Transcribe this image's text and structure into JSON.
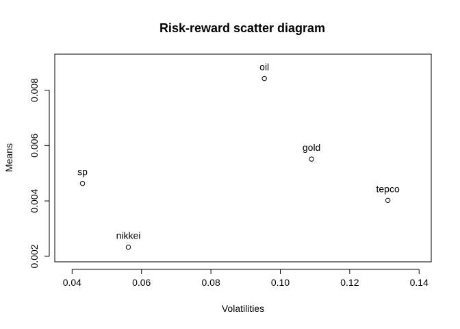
{
  "chart_data": {
    "type": "scatter",
    "title": "Risk-reward scatter diagram",
    "xlabel": "Volatilities",
    "ylabel": "Means",
    "xlim": [
      0.035,
      0.1435
    ],
    "ylim": [
      0.0018,
      0.0093
    ],
    "x_ticks": [
      0.04,
      0.06,
      0.08,
      0.1,
      0.12,
      0.14
    ],
    "x_tick_labels": [
      "0.04",
      "0.06",
      "0.08",
      "0.10",
      "0.12",
      "0.14"
    ],
    "y_ticks": [
      0.002,
      0.004,
      0.006,
      0.008
    ],
    "y_tick_labels": [
      "0.002",
      "0.004",
      "0.006",
      "0.008"
    ],
    "grid": false,
    "points": [
      {
        "label": "sp",
        "x": 0.043,
        "y": 0.00463
      },
      {
        "label": "nikkei",
        "x": 0.0562,
        "y": 0.00233
      },
      {
        "label": "oil",
        "x": 0.0954,
        "y": 0.00842
      },
      {
        "label": "gold",
        "x": 0.109,
        "y": 0.00551
      },
      {
        "label": "tepco",
        "x": 0.131,
        "y": 0.00402
      }
    ]
  }
}
